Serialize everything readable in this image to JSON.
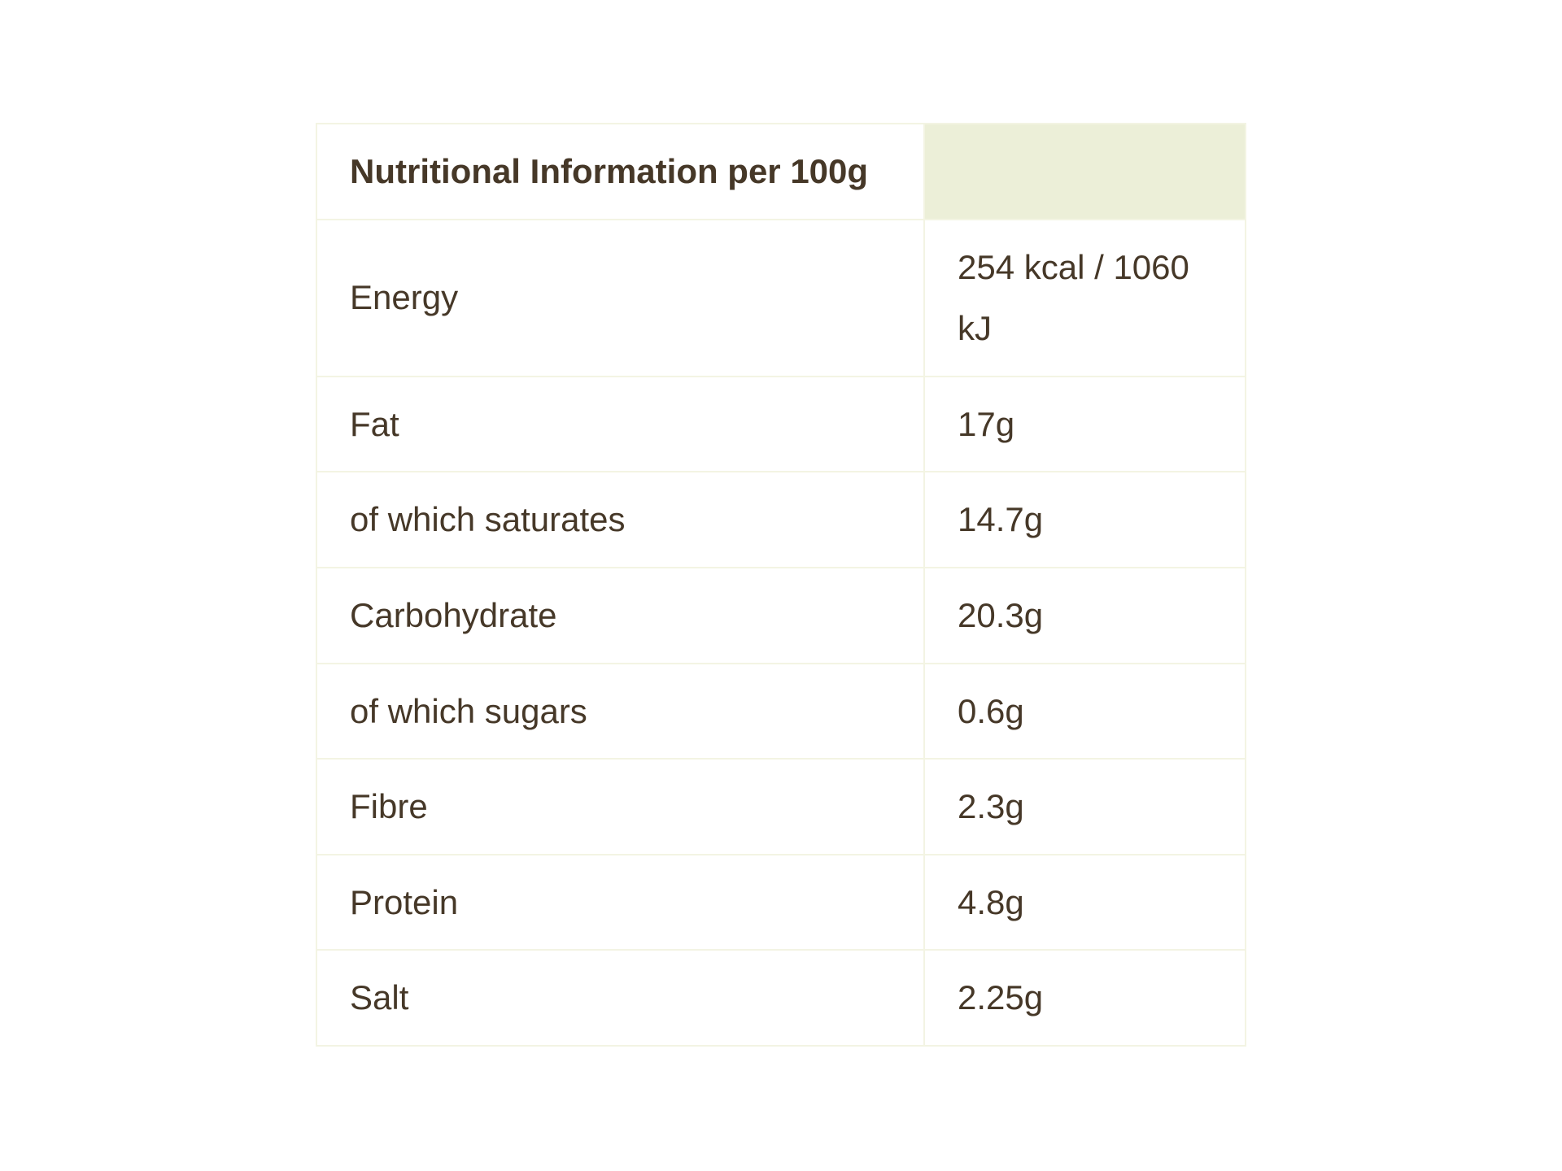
{
  "table": {
    "title_header": "Nutritional Information per 100g",
    "header_value_cell": "",
    "columns": [
      "nutrient",
      "amount_per_100g"
    ],
    "rows": [
      {
        "label": "Energy",
        "value": "254 kcal / 1060 kJ"
      },
      {
        "label": "Fat",
        "value": "17g"
      },
      {
        "label": "of which saturates",
        "value": "14.7g"
      },
      {
        "label": "Carbohydrate",
        "value": "20.3g"
      },
      {
        "label": "of which sugars",
        "value": "0.6g"
      },
      {
        "label": "Fibre",
        "value": "2.3g"
      },
      {
        "label": "Protein",
        "value": "4.8g"
      },
      {
        "label": "Salt",
        "value": "2.25g"
      }
    ],
    "colors": {
      "header_value_bg": "#ecefd8",
      "border": "#f3f4e3",
      "text": "#463828",
      "page_bg": "#ffffff"
    }
  }
}
